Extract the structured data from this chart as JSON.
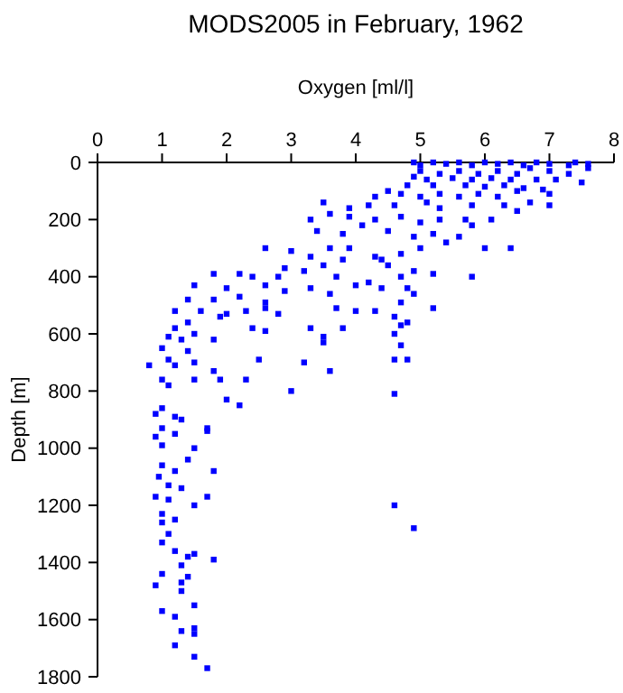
{
  "chart_data": {
    "type": "scatter",
    "title": "MODS2005 in February, 1962",
    "xlabel": "Oxygen [ml/l]",
    "ylabel": "Depth [m]",
    "xlim": [
      0,
      8
    ],
    "xticks": [
      0,
      1,
      2,
      3,
      4,
      5,
      6,
      7,
      8
    ],
    "ylim": [
      1800,
      0
    ],
    "yticks": [
      0,
      200,
      400,
      600,
      800,
      1000,
      1200,
      1400,
      1600,
      1800
    ],
    "marker": "square",
    "grid": false,
    "series": [
      {
        "color": "#0000ff",
        "x": [
          4.9,
          5.0,
          5.2,
          5.4,
          5.6,
          5.8,
          6.0,
          6.2,
          6.4,
          6.6,
          6.8,
          7.0,
          7.3,
          7.4,
          7.6,
          7.6,
          7.3,
          7.0,
          6.7,
          5.0,
          5.3,
          5.6,
          5.9,
          6.2,
          6.5,
          4.9,
          5.1,
          5.5,
          5.8,
          6.1,
          6.4,
          6.8,
          7.1,
          7.5,
          4.8,
          5.2,
          5.7,
          6.0,
          6.3,
          6.6,
          6.9,
          4.5,
          4.3,
          4.7,
          5.0,
          5.3,
          5.6,
          5.9,
          6.2,
          6.5,
          7.0,
          7.0,
          6.7,
          6.3,
          5.8,
          5.3,
          5.1,
          4.6,
          4.2,
          3.9,
          3.5,
          3.6,
          3.9,
          4.3,
          4.7,
          5.0,
          5.3,
          5.7,
          6.1,
          6.5,
          3.3,
          3.4,
          3.8,
          4.1,
          4.5,
          4.9,
          5.2,
          5.6,
          5.8,
          6.4,
          6.0,
          5.4,
          5.0,
          4.7,
          4.4,
          3.9,
          3.6,
          3.3,
          3.0,
          2.6,
          2.9,
          3.2,
          3.5,
          3.8,
          4.3,
          4.5,
          4.9,
          5.2,
          5.8,
          5.2,
          4.7,
          4.2,
          3.7,
          2.8,
          2.4,
          2.2,
          1.8,
          2.0,
          2.6,
          2.9,
          3.3,
          3.6,
          4.0,
          4.4,
          4.8,
          4.9,
          4.7,
          3.7,
          4.0,
          4.3,
          2.6,
          2.2,
          1.8,
          1.5,
          1.4,
          1.2,
          1.6,
          2.0,
          2.3,
          2.6,
          2.8,
          1.9,
          2.4,
          2.6,
          1.4,
          1.2,
          1.1,
          1.3,
          1.8,
          1.5,
          4.6,
          4.7,
          4.6,
          4.7,
          4.8,
          3.3,
          3.8,
          3.5,
          3.5,
          1.0,
          1.1,
          1.4,
          1.5,
          2.5,
          3.2,
          4.6,
          4.8,
          3.6,
          0.8,
          1.2,
          1.8,
          1.0,
          1.1,
          1.5,
          1.9,
          2.3,
          4.6,
          3.0,
          2.0,
          2.2,
          1.0,
          0.9,
          1.2,
          1.3,
          1.0,
          1.2,
          1.7,
          1.7,
          0.9,
          1.0,
          1.5,
          1.4,
          1.0,
          1.2,
          1.8,
          0.95,
          1.1,
          1.3,
          0.9,
          1.1,
          1.7,
          1.5,
          1.0,
          1.2,
          1.0,
          4.6,
          4.9,
          1.1,
          1.0,
          1.2,
          1.4,
          1.5,
          1.8,
          1.3,
          1.0,
          1.3,
          0.9,
          1.3,
          1.4,
          1.5,
          1.0,
          1.2,
          1.5,
          1.5,
          1.3,
          1.2,
          1.5,
          1.7
        ],
        "values": [
          0,
          10,
          0,
          5,
          0,
          10,
          0,
          5,
          0,
          10,
          0,
          5,
          10,
          0,
          5,
          20,
          40,
          30,
          20,
          30,
          40,
          30,
          40,
          30,
          40,
          50,
          60,
          55,
          60,
          55,
          60,
          60,
          60,
          70,
          80,
          80,
          80,
          85,
          80,
          90,
          95,
          100,
          120,
          110,
          120,
          110,
          120,
          110,
          120,
          100,
          110,
          150,
          140,
          150,
          150,
          160,
          140,
          150,
          150,
          160,
          140,
          180,
          190,
          200,
          190,
          210,
          200,
          200,
          200,
          170,
          200,
          240,
          250,
          220,
          240,
          260,
          250,
          260,
          220,
          300,
          300,
          280,
          300,
          320,
          340,
          300,
          300,
          330,
          310,
          300,
          370,
          380,
          360,
          340,
          330,
          360,
          380,
          390,
          400,
          510,
          400,
          420,
          400,
          400,
          400,
          390,
          390,
          440,
          430,
          450,
          440,
          460,
          430,
          440,
          440,
          460,
          490,
          510,
          520,
          520,
          490,
          470,
          480,
          430,
          480,
          520,
          520,
          530,
          520,
          510,
          530,
          540,
          580,
          590,
          560,
          580,
          610,
          620,
          620,
          600,
          540,
          570,
          600,
          640,
          560,
          580,
          580,
          610,
          630,
          650,
          690,
          660,
          700,
          690,
          700,
          690,
          690,
          730,
          710,
          710,
          730,
          760,
          780,
          760,
          760,
          760,
          810,
          800,
          830,
          850,
          860,
          880,
          890,
          900,
          930,
          950,
          940,
          930,
          960,
          990,
          1000,
          1040,
          1060,
          1080,
          1080,
          1100,
          1130,
          1140,
          1170,
          1180,
          1170,
          1200,
          1230,
          1250,
          1260,
          1200,
          1280,
          1300,
          1330,
          1360,
          1380,
          1370,
          1390,
          1410,
          1440,
          1470,
          1480,
          1500,
          1450,
          1550,
          1570,
          1590,
          1630,
          1650,
          1640,
          1690,
          1730,
          1770
        ]
      }
    ]
  }
}
